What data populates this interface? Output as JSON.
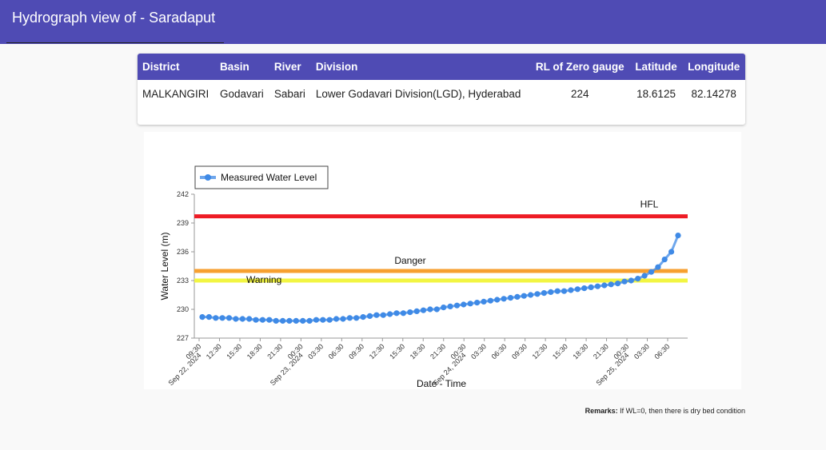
{
  "header": {
    "title": "Hydrograph view of - Saradaput"
  },
  "station_table": {
    "columns": [
      "District",
      "Basin",
      "River",
      "Division",
      "RL of Zero gauge",
      "Latitude",
      "Longitude"
    ],
    "row": [
      "MALKANGIRI",
      "Godavari",
      "Sabari",
      "Lower Godavari Division(LGD), Hyderabad",
      "224",
      "18.6125",
      "82.14278"
    ]
  },
  "remarks": {
    "label": "Remarks:",
    "text": "If WL=0, then there is dry bed condition"
  },
  "chart_data": {
    "type": "line",
    "xlabel": "Date - Time",
    "ylabel": "Water Level (m)",
    "ylim": [
      227,
      242
    ],
    "y_ticks": [
      227,
      230,
      233,
      236,
      239,
      242
    ],
    "x_tick_labels": [
      [
        "09:30",
        "Sep 22, 2024"
      ],
      [
        "12:30"
      ],
      [
        "15:30"
      ],
      [
        "18:30"
      ],
      [
        "21:30"
      ],
      [
        "00:30",
        "Sep 23, 2024"
      ],
      [
        "03:30"
      ],
      [
        "06:30"
      ],
      [
        "09:30"
      ],
      [
        "12:30"
      ],
      [
        "15:30"
      ],
      [
        "18:30"
      ],
      [
        "21:30"
      ],
      [
        "00:30",
        "Sep 24, 2024"
      ],
      [
        "03:30"
      ],
      [
        "06:30"
      ],
      [
        "09:30"
      ],
      [
        "12:30"
      ],
      [
        "15:30"
      ],
      [
        "18:30"
      ],
      [
        "21:30"
      ],
      [
        "00:30",
        "Sep 25, 2024"
      ],
      [
        "03:30"
      ],
      [
        "06:30"
      ]
    ],
    "legend": {
      "position": "top-left",
      "entries": [
        "Measured Water Level"
      ]
    },
    "reference_lines": [
      {
        "name": "HFL",
        "value": 239.7,
        "color": "#ee1c25"
      },
      {
        "name": "Danger",
        "value": 234.0,
        "color": "#f7a030"
      },
      {
        "name": "Warning",
        "value": 233.0,
        "color": "#f2f542"
      }
    ],
    "series": [
      {
        "name": "Measured Water Level",
        "color": "#3f8ae6",
        "values": [
          229.2,
          229.2,
          229.1,
          229.1,
          229.1,
          229.0,
          229.0,
          229.0,
          228.9,
          228.9,
          228.9,
          228.8,
          228.8,
          228.8,
          228.8,
          228.8,
          228.8,
          228.9,
          228.9,
          228.9,
          229.0,
          229.0,
          229.1,
          229.1,
          229.2,
          229.3,
          229.4,
          229.4,
          229.5,
          229.6,
          229.6,
          229.7,
          229.8,
          229.9,
          230.0,
          230.0,
          230.2,
          230.3,
          230.4,
          230.5,
          230.6,
          230.7,
          230.8,
          230.9,
          231.0,
          231.1,
          231.2,
          231.3,
          231.4,
          231.5,
          231.6,
          231.7,
          231.8,
          231.9,
          231.9,
          232.0,
          232.1,
          232.2,
          232.3,
          232.4,
          232.5,
          232.6,
          232.7,
          232.9,
          233.0,
          233.2,
          233.5,
          233.9,
          234.4,
          235.2,
          236.0,
          237.7
        ]
      }
    ]
  }
}
